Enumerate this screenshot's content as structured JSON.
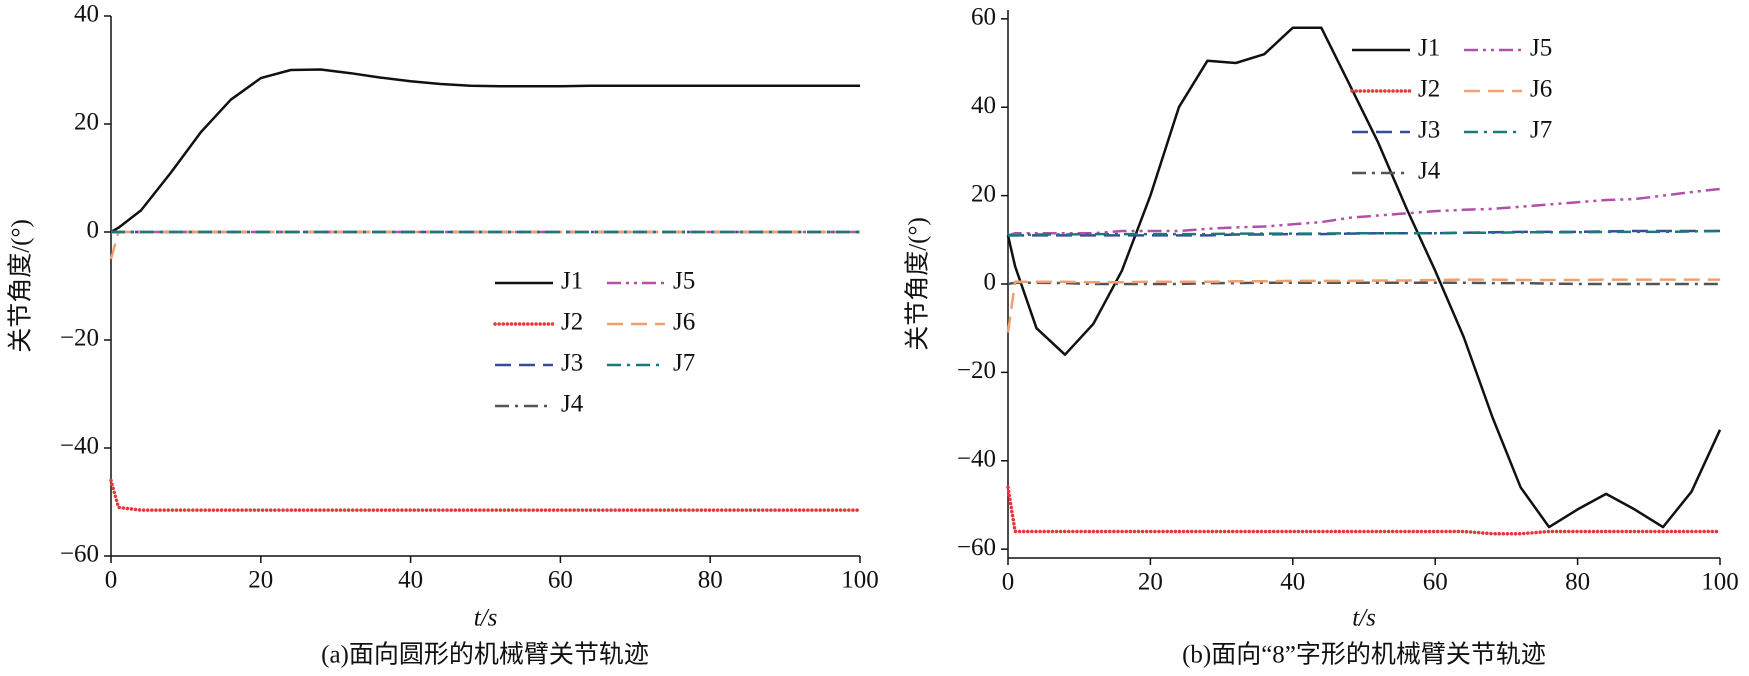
{
  "chart_data": [
    {
      "type": "line",
      "title": "(a)面向圆形的机械臂关节轨迹",
      "xlabel": "t/s",
      "ylabel": "关节角度/(°)",
      "x": [
        0,
        1,
        4,
        8,
        12,
        16,
        20,
        24,
        28,
        32,
        36,
        40,
        44,
        48,
        52,
        56,
        60,
        64,
        68,
        72,
        76,
        80,
        84,
        88,
        92,
        96,
        100
      ],
      "xlim": [
        0,
        100
      ],
      "xticks": [
        0,
        20,
        40,
        60,
        80,
        100
      ],
      "ylim": [
        -60,
        40
      ],
      "yticks": [
        40,
        20,
        0,
        {
          "value": -20,
          "label": "−20"
        },
        {
          "value": -40,
          "label": "−40"
        },
        {
          "value": -60,
          "label": "−60"
        }
      ],
      "legend": "center right",
      "series": [
        {
          "name": "J1",
          "color": "#111111",
          "linestyle": "solid",
          "values": [
            0,
            0.8,
            4,
            11,
            18.5,
            24.5,
            28.5,
            30,
            30.1,
            29.4,
            28.6,
            27.9,
            27.4,
            27.1,
            27,
            27,
            27,
            27.1,
            27.1,
            27.1,
            27.1,
            27.1,
            27.1,
            27.1,
            27.1,
            27.1,
            27.1
          ]
        },
        {
          "name": "J2",
          "color": "#e03a3a",
          "linestyle": "dotted",
          "values": [
            -46,
            -51,
            -51.5,
            -51.5,
            -51.5,
            -51.5,
            -51.5,
            -51.5,
            -51.5,
            -51.5,
            -51.5,
            -51.5,
            -51.5,
            -51.5,
            -51.5,
            -51.5,
            -51.5,
            -51.5,
            -51.5,
            -51.5,
            -51.5,
            -51.5,
            -51.5,
            -51.5,
            -51.5,
            -51.5,
            -51.5
          ]
        },
        {
          "name": "J3",
          "color": "#3a4a9a",
          "linestyle": "dashed",
          "values": [
            0,
            0,
            0,
            0,
            0,
            0,
            0,
            0,
            0,
            0,
            0,
            0,
            0,
            0,
            0,
            0,
            0,
            0,
            0,
            0,
            0,
            0,
            0,
            0,
            0,
            0,
            0
          ]
        },
        {
          "name": "J4",
          "color": "#555555",
          "linestyle": "dashdot",
          "values": [
            0,
            0,
            0,
            0,
            0,
            0,
            0,
            0,
            0,
            0,
            0,
            0,
            0,
            0,
            0,
            0,
            0,
            0,
            0,
            0,
            0,
            0,
            0,
            0,
            0,
            0,
            0
          ]
        },
        {
          "name": "J5",
          "color": "#b050a8",
          "linestyle": "dashdotdot",
          "values": [
            0,
            0,
            0,
            0,
            0,
            0,
            0,
            0,
            0,
            0,
            0,
            0,
            0,
            0,
            0,
            0,
            0,
            0,
            0,
            0,
            0,
            0,
            0,
            0,
            0,
            0,
            0
          ]
        },
        {
          "name": "J6",
          "color": "#f0a070",
          "linestyle": "dashed",
          "values": [
            -5,
            0,
            0,
            0,
            0,
            0,
            0,
            0,
            0,
            0,
            0,
            0,
            0,
            0,
            0,
            0,
            0,
            0,
            0,
            0,
            0,
            0,
            0,
            0,
            0,
            0,
            0
          ]
        },
        {
          "name": "J7",
          "color": "#1a7a7a",
          "linestyle": "dashdot",
          "values": [
            0,
            0,
            0,
            0,
            0,
            0,
            0,
            0,
            0,
            0,
            0,
            0,
            0,
            0,
            0,
            0,
            0,
            0,
            0,
            0,
            0,
            0,
            0,
            0,
            0,
            0,
            0
          ]
        }
      ]
    },
    {
      "type": "line",
      "title": "(b)面向“8”字形的机械臂关节轨迹",
      "xlabel": "t/s",
      "ylabel": "关节角度/(°)",
      "x": [
        0,
        1,
        4,
        8,
        12,
        16,
        20,
        24,
        28,
        32,
        36,
        40,
        44,
        48,
        52,
        56,
        60,
        64,
        68,
        72,
        76,
        80,
        84,
        88,
        92,
        96,
        100
      ],
      "xlim": [
        0,
        100
      ],
      "xticks": [
        0,
        20,
        40,
        60,
        80,
        100
      ],
      "ylim": [
        -62,
        62
      ],
      "yticks": [
        60,
        40,
        20,
        0,
        {
          "value": -20,
          "label": "−20"
        },
        {
          "value": -40,
          "label": "−40"
        },
        {
          "value": -60,
          "label": "−60"
        }
      ],
      "legend": "upper right",
      "series": [
        {
          "name": "J1",
          "color": "#111111",
          "linestyle": "solid",
          "values": [
            11,
            4,
            -10,
            -16,
            -9,
            3,
            20,
            40,
            50.5,
            50,
            52,
            58,
            58,
            45,
            32,
            17,
            3,
            -12,
            -30,
            -46,
            -55,
            -51,
            -47.5,
            -51,
            -55,
            -47,
            -33
          ]
        },
        {
          "name": "J2",
          "color": "#e03a3a",
          "linestyle": "dotted",
          "values": [
            -46,
            -56,
            -56,
            -56,
            -56,
            -56,
            -56,
            -56,
            -56,
            -56,
            -56,
            -56,
            -56,
            -56,
            -56,
            -56,
            -56,
            -56,
            -56.5,
            -56.5,
            -56,
            -56,
            -56,
            -56,
            -56,
            -56,
            -56
          ]
        },
        {
          "name": "J3",
          "color": "#3a4a9a",
          "linestyle": "dashed",
          "values": [
            11,
            11,
            11,
            11,
            11,
            11,
            11,
            11,
            11,
            11.2,
            11.2,
            11.3,
            11.3,
            11.4,
            11.5,
            11.5,
            11.5,
            11.6,
            11.7,
            11.8,
            11.8,
            11.8,
            11.9,
            12,
            12,
            12,
            12
          ]
        },
        {
          "name": "J4",
          "color": "#555555",
          "linestyle": "dashdot",
          "values": [
            0,
            0.3,
            0.3,
            0.2,
            0,
            0,
            0,
            0,
            0.2,
            0.2,
            0.3,
            0.3,
            0.3,
            0.3,
            0.3,
            0.3,
            0.3,
            0.3,
            0.2,
            0.2,
            0.1,
            0,
            0,
            0,
            0,
            0,
            0
          ]
        },
        {
          "name": "J5",
          "color": "#b050a8",
          "linestyle": "dashdotdot",
          "values": [
            11,
            11.5,
            11.5,
            11.5,
            11.5,
            12,
            12,
            12,
            12.5,
            12.8,
            13,
            13.5,
            14,
            15,
            15.5,
            16,
            16.5,
            16.8,
            17,
            17.5,
            18,
            18.5,
            19,
            19.2,
            20,
            20.8,
            21.5
          ]
        },
        {
          "name": "J6",
          "color": "#f0a070",
          "linestyle": "dashed",
          "values": [
            -11,
            0.5,
            0.5,
            0.5,
            0.4,
            0.4,
            0.5,
            0.5,
            0.5,
            0.6,
            0.6,
            0.7,
            0.7,
            0.7,
            0.8,
            0.8,
            0.9,
            1,
            1,
            0.9,
            0.9,
            0.9,
            1,
            1,
            1,
            1,
            1
          ]
        },
        {
          "name": "J7",
          "color": "#1a7a7a",
          "linestyle": "dashdot",
          "values": [
            11,
            11,
            11.2,
            11.2,
            11.3,
            11.3,
            11.3,
            11.3,
            11.3,
            11.4,
            11.4,
            11.4,
            11.4,
            11.5,
            11.5,
            11.5,
            11.5,
            11.6,
            11.6,
            11.7,
            11.7,
            11.7,
            11.8,
            11.8,
            11.8,
            11.9,
            12
          ]
        }
      ]
    }
  ]
}
